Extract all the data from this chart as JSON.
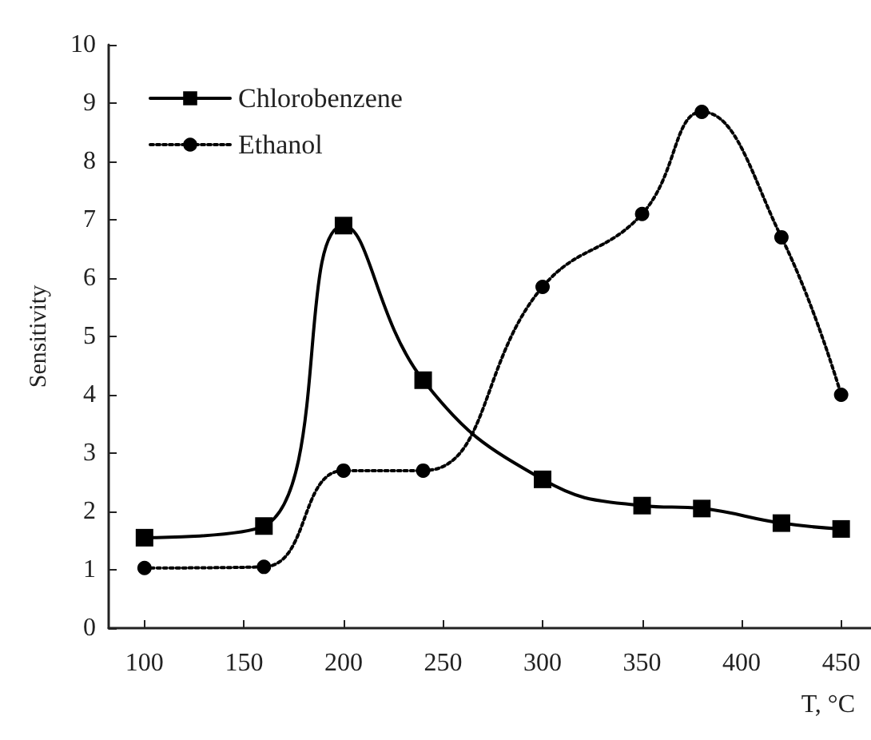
{
  "chart_data": {
    "type": "line",
    "xlabel": "T, °C",
    "ylabel": "Sensitivity",
    "x": [
      100,
      160,
      200,
      240,
      300,
      350,
      380,
      420,
      450
    ],
    "series": [
      {
        "name": "Chlorobenzene",
        "color": "#000000",
        "marker": "square",
        "line_style": "solid",
        "values": [
          1.55,
          1.75,
          6.9,
          4.25,
          2.55,
          2.1,
          2.05,
          1.8,
          1.7
        ]
      },
      {
        "name": "Ethanol",
        "color": "#000000",
        "marker": "circle",
        "line_style": "dotted",
        "values": [
          1.03,
          1.05,
          2.7,
          2.7,
          5.85,
          7.1,
          8.85,
          6.7,
          4.0
        ]
      }
    ],
    "xlim": [
      82,
      465
    ],
    "xticks": [
      100,
      150,
      200,
      250,
      300,
      350,
      400,
      450
    ],
    "ylim": [
      0,
      10
    ],
    "yticks": [
      0,
      1,
      2,
      3,
      4,
      5,
      6,
      7,
      8,
      9,
      10
    ],
    "grid": false,
    "legend": "top left"
  }
}
